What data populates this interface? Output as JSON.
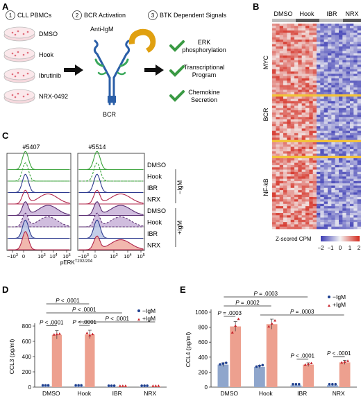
{
  "panelA": {
    "letter": "A",
    "steps": [
      {
        "num": "1",
        "label": "CLL PBMCs"
      },
      {
        "num": "2",
        "label": "BCR Activation"
      },
      {
        "num": "3",
        "label": "BTK Dependent Signals"
      }
    ],
    "dishes": [
      "DMSO",
      "Hook",
      "Ibrutinib",
      "NRX-0492"
    ],
    "anti_igm": "Anti-IgM",
    "bcr": "BCR",
    "signals": [
      {
        "l1": "ERK",
        "l2": "phosphorylation"
      },
      {
        "l1": "Transcriptional",
        "l2": "Program"
      },
      {
        "l1": "Chemokine",
        "l2": "Secretion"
      }
    ],
    "colors": {
      "check": "#3a9a44",
      "antibody": "#e0a010",
      "receptor": "#2b5fa8"
    }
  },
  "panelB": {
    "letter": "B",
    "groups": [
      "DMSO",
      "Hook",
      "IBR",
      "NRX"
    ],
    "row_labels": [
      "MYC",
      "BCR",
      "NF-kB"
    ],
    "legend_title": "Z-scored CPM",
    "legend_ticks": [
      "−2",
      "−1",
      "0",
      "1",
      "2"
    ],
    "colors": {
      "low": "#3c3cb4",
      "mid": "#f4f4f4",
      "high": "#d42a1e"
    }
  },
  "panelC": {
    "letter": "C",
    "samples": [
      "#5407",
      "#5514"
    ],
    "row_labels": [
      "DMSO",
      "Hook",
      "IBR",
      "NRX",
      "DMSO",
      "Hook",
      "IBR",
      "NRX"
    ],
    "group_minus": "−IgM",
    "group_plus": "+IgM",
    "x_ticks": [
      "−10",
      "0",
      "10",
      "10",
      "10"
    ],
    "x_tick_exps": [
      "3",
      "",
      "3",
      "4",
      "5"
    ],
    "x_label": "pERK",
    "x_label_sup": "T202/204"
  },
  "chart_data": [
    {
      "type": "bar",
      "panel": "D",
      "ylabel": "CCL3 (pg/ml)",
      "yticks": [
        "0",
        "200",
        "400",
        "600",
        "800"
      ],
      "ylim": [
        0,
        800
      ],
      "categories": [
        "DMSO",
        "Hook",
        "IBR",
        "NRX"
      ],
      "series": [
        {
          "name": "−IgM",
          "values": [
            10,
            10,
            5,
            5
          ],
          "points": [
            [
              10,
              10,
              10
            ],
            [
              10,
              10,
              10
            ],
            [
              5,
              5,
              5
            ],
            [
              5,
              5,
              5
            ]
          ],
          "color": "#8fa6cc",
          "marker_color": "#1e3f8f"
        },
        {
          "name": "+IgM",
          "values": [
            685,
            690,
            8,
            8
          ],
          "points": [
            [
              680,
              685,
              690
            ],
            [
              700,
              670,
              685
            ],
            [
              8,
              8,
              8
            ],
            [
              8,
              8,
              8
            ]
          ],
          "color": "#eda08f",
          "marker_color": "#c6232b"
        }
      ],
      "legend": [
        "−IgM",
        "+IgM"
      ],
      "annotations": [
        {
          "text": "P < .0001",
          "from": 0,
          "to": 1,
          "level": 4
        },
        {
          "text": "P < .0001",
          "from": 0,
          "to": 2,
          "level": 3
        },
        {
          "text": "P < .0001",
          "from": 1,
          "to": 3,
          "level": 2
        },
        {
          "text": "P < .0001",
          "from": 1,
          "to": 1,
          "level": 1,
          "within": true
        },
        {
          "text": "P < .0001",
          "from": 0,
          "to": 0,
          "level": 0,
          "within": true
        }
      ]
    },
    {
      "type": "bar",
      "panel": "E",
      "ylabel": "CCL4 (pg/ml)",
      "yticks": [
        "0",
        "200",
        "400",
        "600",
        "800",
        "1000"
      ],
      "ylim": [
        0,
        1000
      ],
      "categories": [
        "DMSO",
        "Hook",
        "IBR",
        "NRX"
      ],
      "series": [
        {
          "name": "−IgM",
          "values": [
            300,
            270,
            25,
            25
          ],
          "points": [
            [
              290,
              300,
              310
            ],
            [
              260,
              270,
              280
            ],
            [
              25,
              25,
              25
            ],
            [
              25,
              25,
              25
            ]
          ],
          "color": "#8fa6cc",
          "marker_color": "#1e3f8f"
        },
        {
          "name": "+IgM",
          "values": [
            810,
            840,
            300,
            330
          ],
          "points": [
            [
              720,
              810,
              900
            ],
            [
              800,
              840,
              880
            ],
            [
              290,
              300,
              310
            ],
            [
              320,
              330,
              340
            ]
          ],
          "color": "#eda08f",
          "marker_color": "#c6232b"
        }
      ],
      "legend": [
        "−IgM",
        "+IgM"
      ],
      "annotations": [
        {
          "text": "P = .0003",
          "from": 0,
          "to": 2,
          "level": 3
        },
        {
          "text": "P = .0002",
          "from": 0,
          "to": 1,
          "level": 2
        },
        {
          "text": "P = .0003",
          "from": 1,
          "to": 3,
          "level": 1
        },
        {
          "text": "P = .0003",
          "from": 0,
          "to": 0,
          "level": 0,
          "within": true
        },
        {
          "text": "P < .0001",
          "from": 2,
          "to": 2,
          "level": 0,
          "within": true
        },
        {
          "text": "P < .0001",
          "from": 3,
          "to": 3,
          "level": 0,
          "within": true
        }
      ]
    }
  ]
}
